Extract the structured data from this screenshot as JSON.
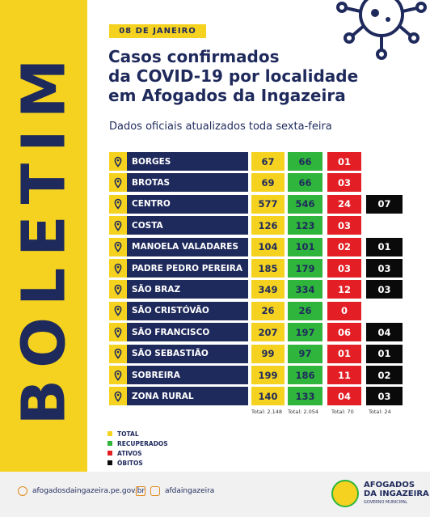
{
  "side_title": "BOLETIM",
  "date_badge": "08 DE JANEIRO",
  "title_lines": [
    "Casos confirmados",
    "da COVID-19 por localidade",
    "em Afogados da Ingazeira"
  ],
  "subtitle": "Dados oficiais atualizados toda sexta-feira",
  "table": {
    "columns": [
      "Total",
      "Recuperados",
      "Ativos",
      "Óbitos"
    ],
    "rows": [
      {
        "name": "BORGES",
        "total": "67",
        "recuperados": "66",
        "ativos": "01",
        "obitos": ""
      },
      {
        "name": "BROTAS",
        "total": "69",
        "recuperados": "66",
        "ativos": "03",
        "obitos": ""
      },
      {
        "name": "CENTRO",
        "total": "577",
        "recuperados": "546",
        "ativos": "24",
        "obitos": "07"
      },
      {
        "name": "COSTA",
        "total": "126",
        "recuperados": "123",
        "ativos": "03",
        "obitos": ""
      },
      {
        "name": "MANOELA VALADARES",
        "total": "104",
        "recuperados": "101",
        "ativos": "02",
        "obitos": "01"
      },
      {
        "name": "PADRE PEDRO PEREIRA",
        "total": "185",
        "recuperados": "179",
        "ativos": "03",
        "obitos": "03"
      },
      {
        "name": "SÃO BRAZ",
        "total": "349",
        "recuperados": "334",
        "ativos": "12",
        "obitos": "03"
      },
      {
        "name": "SÃO CRISTÓVÃO",
        "total": "26",
        "recuperados": "26",
        "ativos": "0",
        "obitos": ""
      },
      {
        "name": "SÃO FRANCISCO",
        "total": "207",
        "recuperados": "197",
        "ativos": "06",
        "obitos": "04"
      },
      {
        "name": "SÃO SEBASTIÃO",
        "total": "99",
        "recuperados": "97",
        "ativos": "01",
        "obitos": "01"
      },
      {
        "name": "SOBREIRA",
        "total": "199",
        "recuperados": "186",
        "ativos": "11",
        "obitos": "02"
      },
      {
        "name": "ZONA RURAL",
        "total": "140",
        "recuperados": "133",
        "ativos": "04",
        "obitos": "03"
      }
    ],
    "totals": {
      "total": "Total: 2.148",
      "recuperados": "Total: 2.054",
      "ativos": "Total: 70",
      "obitos": "Total: 24"
    }
  },
  "legend": [
    {
      "label": "TOTAL",
      "color": "#f5d21f"
    },
    {
      "label": "RECUPERADOS",
      "color": "#2fb53c"
    },
    {
      "label": "ATIVOS",
      "color": "#e31e24"
    },
    {
      "label": "ÓBITOS",
      "color": "#0a0a0a"
    }
  ],
  "footer": {
    "website": "afogadosdaingazeira.pe.gov.br",
    "social": "afdaingazeira",
    "logo_line1": "AFOGADOS",
    "logo_line2": "DA INGAZEIRA",
    "logo_sub": "GOVERNO MUNICIPAL"
  },
  "colors": {
    "navy": "#1f2a5c",
    "yellow": "#f5d21f",
    "green": "#2fb53c",
    "red": "#e31e24",
    "black": "#0a0a0a"
  }
}
